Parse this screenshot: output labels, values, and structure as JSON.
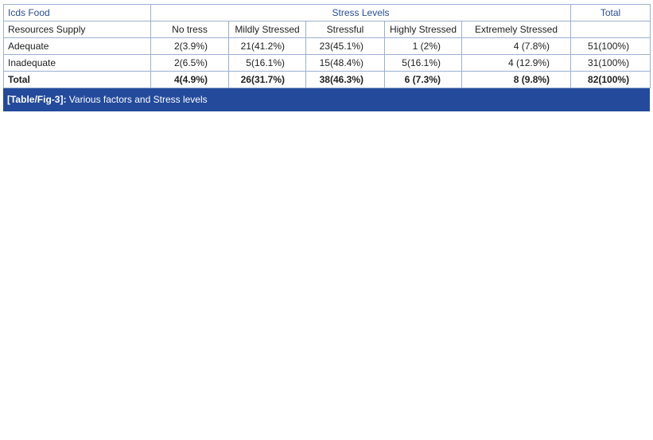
{
  "table": {
    "header": [
      "Icds Food",
      "Stress Levels",
      "Total"
    ],
    "columns": [
      "Resources  Supply",
      "No tress",
      "Mildly Stressed",
      "Stressful",
      "Highly Stressed",
      "Extremely Stressed"
    ],
    "rows": [
      [
        "Adequate",
        "2(3.9%)",
        "21(41.2%)",
        "23(45.1%)",
        "1 (2%)",
        "4 (7.8%)",
        "51(100%)"
      ],
      [
        "Inadequate",
        "2(6.5%)",
        "5(16.1%)",
        "15(48.4%)",
        "5(16.1%)",
        "4 (12.9%)",
        "31(100%)"
      ],
      [
        "Total",
        "4(4.9%)",
        "26(31.7%)",
        "38(46.3%)",
        "6 (7.3%)",
        "8 (9.8%)",
        "82(100%)"
      ]
    ]
  },
  "caption": {
    "label": "[Table/Fig-3]:",
    "text": "Various factors and Stress levels"
  }
}
